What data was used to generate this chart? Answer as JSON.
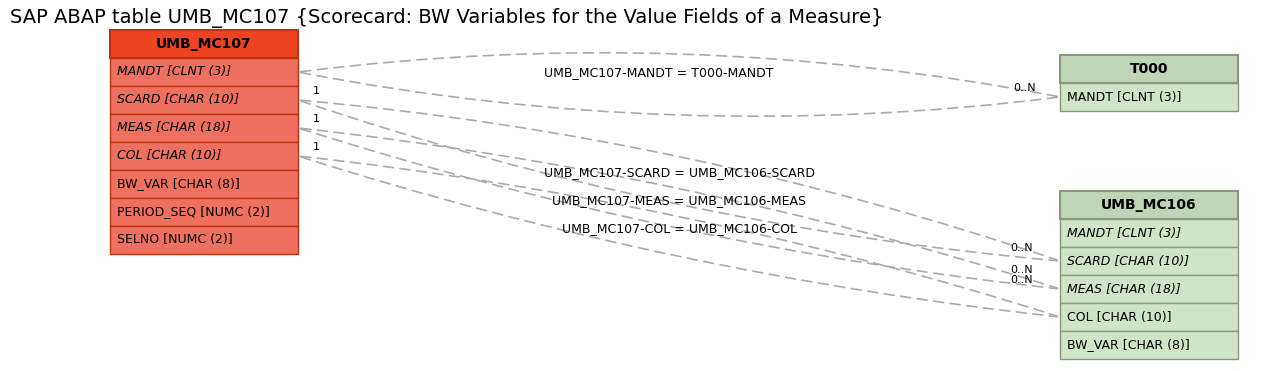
{
  "title": "SAP ABAP table UMB_MC107 {Scorecard: BW Variables for the Value Fields of a Measure}",
  "title_fontsize": 14,
  "bg_color": "#ffffff",
  "main_table": {
    "name": "UMB_MC107",
    "header_bg": "#ee4422",
    "header_fg": "#000000",
    "row_bg": "#f07060",
    "row_fg": "#000000",
    "border_color": "#bb3311",
    "fields": [
      {
        "text": "MANDT",
        "type": "CLNT (3)",
        "italic": true,
        "underline": true
      },
      {
        "text": "SCARD",
        "type": "CHAR (10)",
        "italic": true,
        "underline": true
      },
      {
        "text": "MEAS",
        "type": "CHAR (18)",
        "italic": true,
        "underline": true
      },
      {
        "text": "COL",
        "type": "CHAR (10)",
        "italic": true,
        "underline": true
      },
      {
        "text": "BW_VAR",
        "type": "CHAR (8)",
        "italic": false,
        "underline": true
      },
      {
        "text": "PERIOD_SEQ",
        "type": "NUMC (2)",
        "italic": false,
        "underline": true
      },
      {
        "text": "SELNO",
        "type": "NUMC (2)",
        "italic": false,
        "underline": true
      }
    ]
  },
  "t000_table": {
    "name": "T000",
    "header_bg": "#c0d4b8",
    "header_fg": "#000000",
    "row_bg": "#d0e4c8",
    "row_fg": "#000000",
    "border_color": "#889880",
    "fields": [
      {
        "text": "MANDT",
        "type": "CLNT (3)",
        "italic": false,
        "underline": true
      }
    ]
  },
  "mc106_table": {
    "name": "UMB_MC106",
    "header_bg": "#c0d4b8",
    "header_fg": "#000000",
    "row_bg": "#d0e4c8",
    "row_fg": "#000000",
    "border_color": "#889880",
    "fields": [
      {
        "text": "MANDT",
        "type": "CLNT (3)",
        "italic": true,
        "underline": true
      },
      {
        "text": "SCARD",
        "type": "CHAR (10)",
        "italic": true,
        "underline": true
      },
      {
        "text": "MEAS",
        "type": "CHAR (18)",
        "italic": true,
        "underline": true
      },
      {
        "text": "COL",
        "type": "CHAR (10)",
        "italic": false,
        "underline": true
      },
      {
        "text": "BW_VAR",
        "type": "CHAR (8)",
        "italic": false,
        "underline": true
      }
    ]
  },
  "dash_color": "#aaaaaa",
  "relation_fontsize": 9,
  "card_fontsize": 8,
  "field_fontsize": 9,
  "header_fontsize": 10
}
